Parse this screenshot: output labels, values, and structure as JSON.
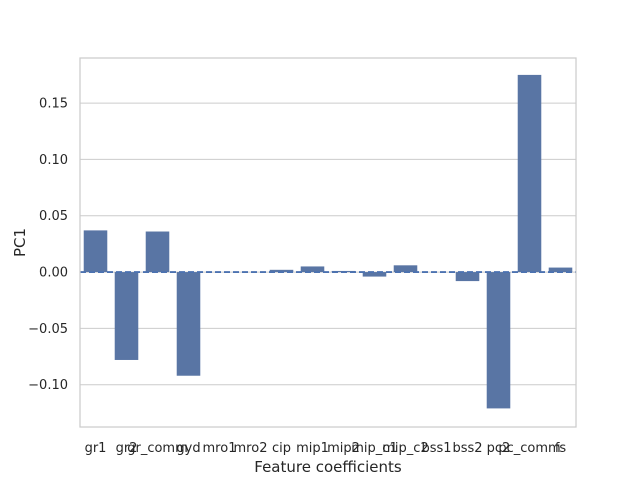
{
  "chart_data": {
    "type": "bar",
    "categories": [
      "gr1",
      "gr2",
      "gr_comm",
      "gyd",
      "mro1",
      "mro2",
      "cip",
      "mip1",
      "mip2",
      "mip_c1",
      "mip_c2",
      "bss1",
      "bss2",
      "pc2",
      "pc_comm",
      "fs"
    ],
    "values": [
      0.037,
      -0.078,
      0.036,
      -0.092,
      0.0,
      0.0,
      0.002,
      0.005,
      0.001,
      -0.004,
      0.006,
      0.0,
      -0.008,
      -0.121,
      0.175,
      0.004
    ],
    "xlabel": "Feature coefficients",
    "ylabel": "PC1",
    "ylim": [
      -0.1375,
      0.19
    ],
    "yticks": [
      -0.1,
      -0.05,
      0.0,
      0.05,
      0.1,
      0.15
    ],
    "ytick_labels": [
      "−0.10",
      "−0.05",
      "0.00",
      "0.05",
      "0.10",
      "0.15"
    ],
    "grid": "horizontal",
    "reference_line": {
      "y": 0,
      "style": "dashed"
    },
    "colors": {
      "bar": "#5975a4",
      "grid": "#cccccc",
      "axes": "#cccccc",
      "reference_line": "#4c72b0"
    }
  }
}
